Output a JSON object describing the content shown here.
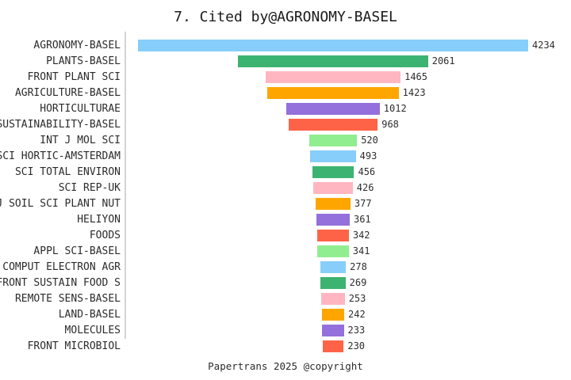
{
  "page": {
    "background": "#ffffff",
    "text_color": "#2b2b2b"
  },
  "footer": "Papertrans 2025 @copyright",
  "chart_data": {
    "type": "bar",
    "subtype": "horizontal-centered-funnel",
    "title": "7. Cited by@AGRONOMY-BASEL",
    "categories": [
      "AGRONOMY-BASEL",
      "PLANTS-BASEL",
      "FRONT PLANT SCI",
      "AGRICULTURE-BASEL",
      "HORTICULTURAE",
      "SUSTAINABILITY-BASEL",
      "INT J MOL SCI",
      "SCI HORTIC-AMSTERDAM",
      "SCI TOTAL ENVIRON",
      "SCI REP-UK",
      "J SOIL SCI PLANT NUT",
      "HELIYON",
      "FOODS",
      "APPL SCI-BASEL",
      "COMPUT ELECTRON AGR",
      "FRONT SUSTAIN FOOD S",
      "REMOTE SENS-BASEL",
      "LAND-BASEL",
      "MOLECULES",
      "FRONT MICROBIOL"
    ],
    "values": [
      4234,
      2061,
      1465,
      1423,
      1012,
      968,
      520,
      493,
      456,
      426,
      377,
      361,
      342,
      341,
      278,
      269,
      253,
      242,
      233,
      230
    ],
    "xlabel": "",
    "ylabel": "",
    "value_labels_shown": true,
    "grid": false,
    "legend": false,
    "palette": [
      "#87CEFA",
      "#3CB371",
      "#FFB6C1",
      "#FFA500",
      "#9370DB",
      "#FF6347",
      "#90EE90"
    ],
    "axis_line_color": "#d4d4d4",
    "label_color": "#2b2b2b",
    "value_label_color": "#2e2e2e"
  }
}
